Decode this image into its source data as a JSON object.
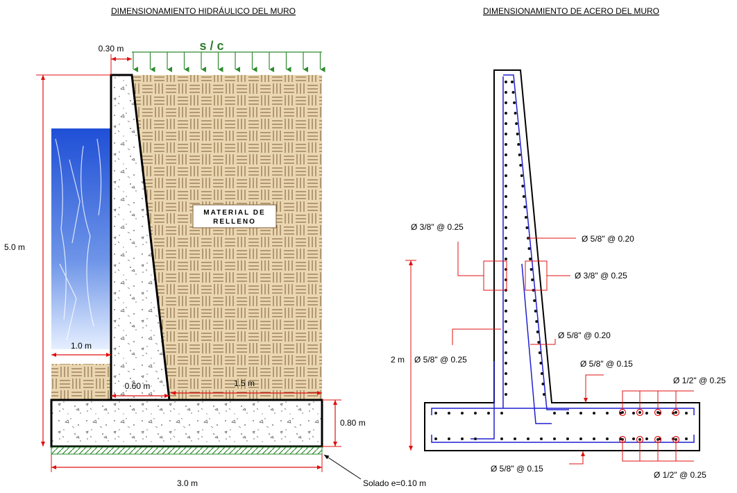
{
  "titles": {
    "left": "DIMENSIONAMIENTO HIDRÁULICO DEL MURO",
    "right": "DIMENSIONAMIENTO DE ACERO DEL MURO"
  },
  "left_diagram": {
    "surcharge": "s / c",
    "crown": "0.30 m",
    "height": "5.0 m",
    "fill_label_1": "MATERIAL DE",
    "fill_label_2": "RELLENO",
    "toe": "1.0 m",
    "stem_base": "0.60 m",
    "heel": "1.5 m",
    "footing": "0.80 m",
    "base": "3.0 m",
    "solado": "Solado e=0.10 m"
  },
  "right_diagram": {
    "stem_front_bars": "Ø 3/8\" @ 0.25",
    "stem_back_upper": "Ø 5/8\" @ 0.20",
    "stem_back_horizontal": "Ø 3/8\" @ 0.25",
    "stem_back_lower": "Ø 5/8\" @ 0.20",
    "stem_front_lower": "Ø 5/8\" @ 0.25",
    "height_2m": "2 m",
    "footing_top": "Ø 5/8\" @ 0.15",
    "footing_top_transverse": "Ø 1/2\" @ 0.25",
    "footing_bottom": "Ø 5/8\" @ 0.15",
    "footing_bottom_transverse": "Ø 1/2\" @ 0.25"
  },
  "colors": {
    "dimension": "#e01010",
    "rebar": "#1f1fd0",
    "surcharge": "#2e8b2e",
    "fill": "#e6cfa5"
  }
}
